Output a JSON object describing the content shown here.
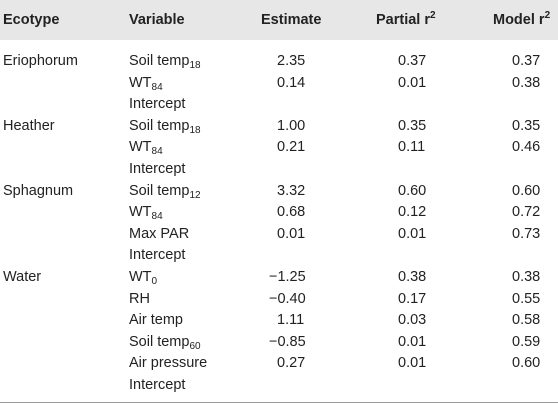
{
  "headers": {
    "ecotype": "Ecotype",
    "variable": "Variable",
    "estimate": "Estimate",
    "partial_base": "Partial r",
    "partial_sup": "2",
    "model_base": "Model r",
    "model_sup": "2"
  },
  "rows": [
    {
      "ecotype": "Eriophorum",
      "var": "Soil temp",
      "sub": "18",
      "estimate": "2.35",
      "partial": "0.37",
      "model": "0.37"
    },
    {
      "ecotype": "",
      "var": "WT",
      "sub": "84",
      "estimate": "0.14",
      "partial": "0.01",
      "model": "0.38"
    },
    {
      "ecotype": "",
      "var": "Intercept",
      "sub": "",
      "estimate": "",
      "partial": "",
      "model": ""
    },
    {
      "ecotype": "Heather",
      "var": "Soil temp",
      "sub": "18",
      "estimate": "1.00",
      "partial": "0.35",
      "model": "0.35"
    },
    {
      "ecotype": "",
      "var": "WT",
      "sub": "84",
      "estimate": "0.21",
      "partial": "0.11",
      "model": "0.46"
    },
    {
      "ecotype": "",
      "var": "Intercept",
      "sub": "",
      "estimate": "",
      "partial": "",
      "model": ""
    },
    {
      "ecotype": "Sphagnum",
      "var": "Soil temp",
      "sub": "12",
      "estimate": "3.32",
      "partial": "0.60",
      "model": "0.60"
    },
    {
      "ecotype": "",
      "var": "WT",
      "sub": "84",
      "estimate": "0.68",
      "partial": "0.12",
      "model": "0.72"
    },
    {
      "ecotype": "",
      "var": "Max PAR",
      "sub": "",
      "estimate": "0.01",
      "partial": "0.01",
      "model": "0.73"
    },
    {
      "ecotype": "",
      "var": "Intercept",
      "sub": "",
      "estimate": "",
      "partial": "",
      "model": ""
    },
    {
      "ecotype": "Water",
      "var": "WT",
      "sub": "0",
      "estimate": "−1.25",
      "partial": "0.38",
      "model": "0.38"
    },
    {
      "ecotype": "",
      "var": "RH",
      "sub": "",
      "estimate": "−0.40",
      "partial": "0.17",
      "model": "0.55"
    },
    {
      "ecotype": "",
      "var": "Air temp",
      "sub": "",
      "estimate": "1.11",
      "partial": "0.03",
      "model": "0.58"
    },
    {
      "ecotype": "",
      "var": "Soil temp",
      "sub": "60",
      "estimate": "−0.85",
      "partial": "0.01",
      "model": "0.59"
    },
    {
      "ecotype": "",
      "var": "Air pressure",
      "sub": "",
      "estimate": "0.27",
      "partial": "0.01",
      "model": "0.60"
    },
    {
      "ecotype": "",
      "var": "Intercept",
      "sub": "",
      "estimate": "",
      "partial": "",
      "model": ""
    }
  ]
}
